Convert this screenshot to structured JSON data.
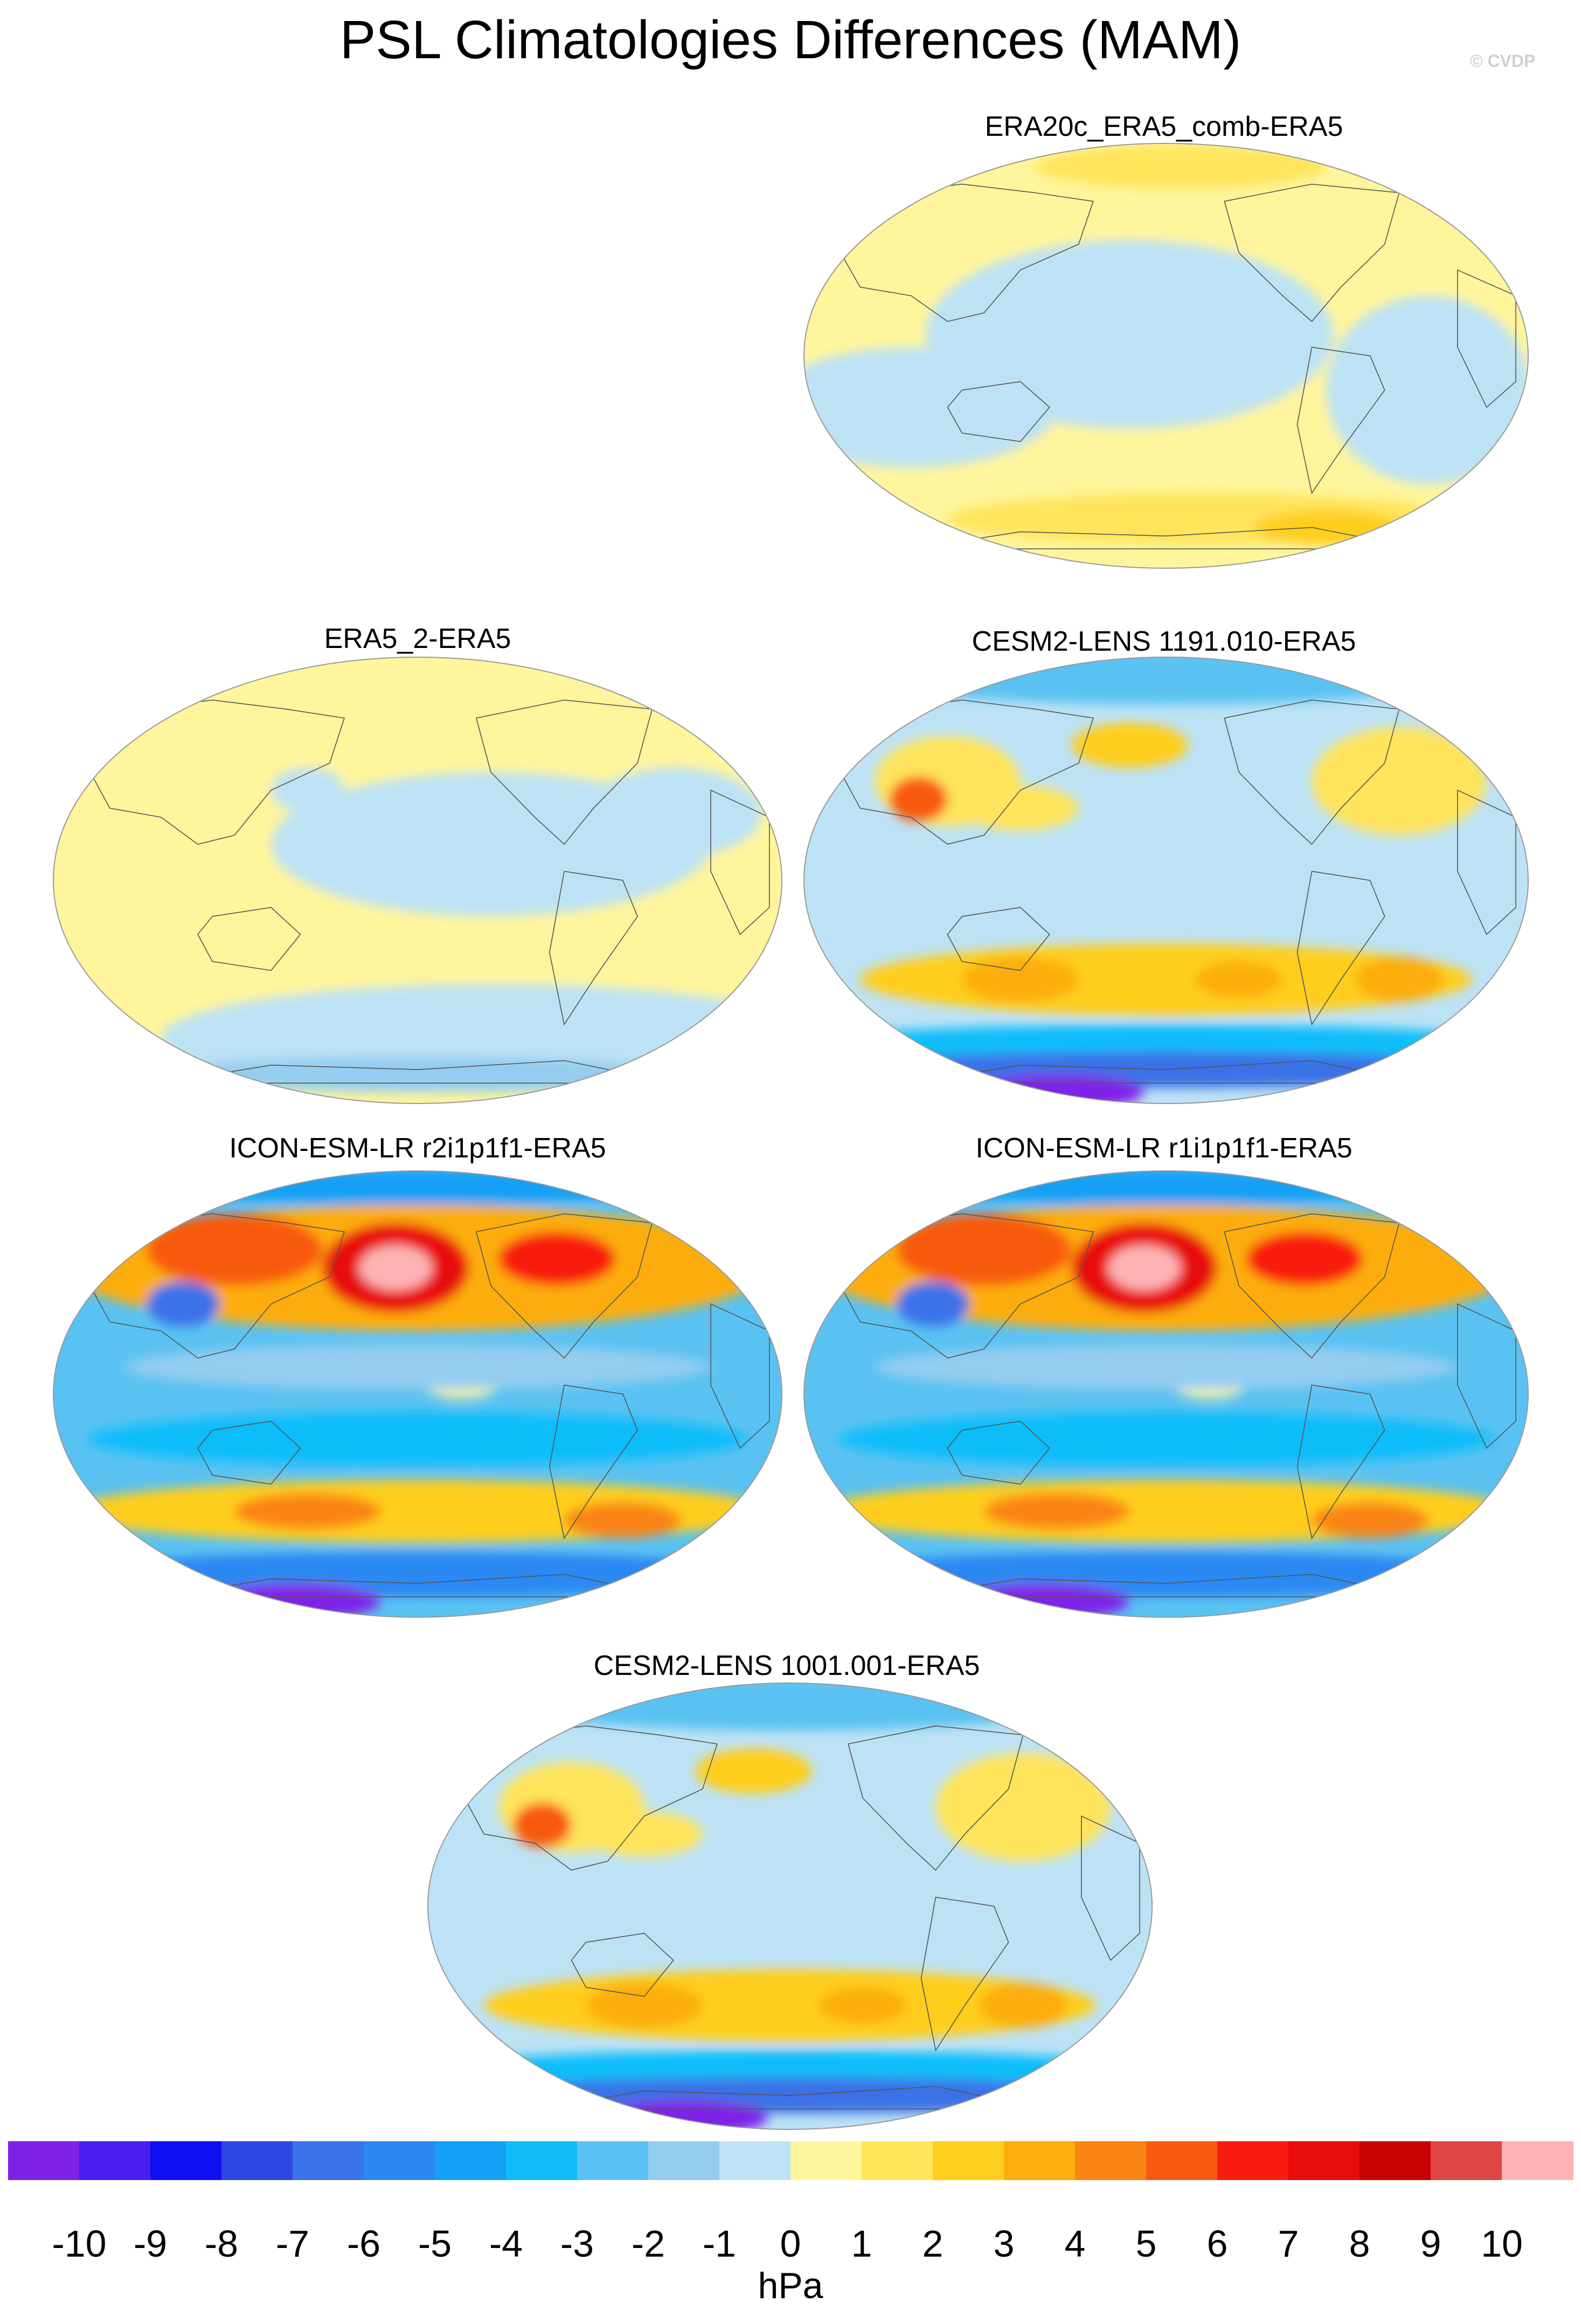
{
  "title": "PSL Climatologies Differences (MAM)",
  "credit": "© CVDP",
  "panels": [
    {
      "title": "ERA20c_ERA5_comb-ERA5",
      "style": "weak_pos"
    },
    {
      "title": "ERA5_2-ERA5",
      "style": "near_zero"
    },
    {
      "title": "CESM2-LENS 1191.010-ERA5",
      "style": "cesm"
    },
    {
      "title": "ICON-ESM-LR r2i1p1f1-ERA5",
      "style": "icon"
    },
    {
      "title": "ICON-ESM-LR r1i1p1f1-ERA5",
      "style": "icon"
    },
    {
      "title": "CESM2-LENS 1001.001-ERA5",
      "style": "cesm"
    }
  ],
  "colorbar": {
    "units": "hPa",
    "labels": [
      "-10",
      "-9",
      "-8",
      "-7",
      "-6",
      "-5",
      "-4",
      "-3",
      "-2",
      "-1",
      "0",
      "1",
      "2",
      "3",
      "4",
      "5",
      "6",
      "7",
      "8",
      "9",
      "10"
    ],
    "colors": [
      "#7f22e8",
      "#4a1df0",
      "#1010f2",
      "#2e46e6",
      "#3a72e8",
      "#2b88f2",
      "#14a0f5",
      "#10bdfa",
      "#5ac2f2",
      "#94cdf0",
      "#bde2f5",
      "#fff59c",
      "#ffe45c",
      "#ffce1e",
      "#fcad10",
      "#fa8414",
      "#f85a10",
      "#f81c10",
      "#e80c0c",
      "#c80000",
      "#de4646",
      "#ffb4b4"
    ]
  }
}
